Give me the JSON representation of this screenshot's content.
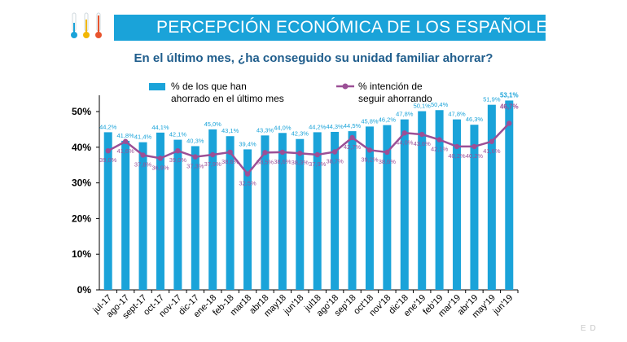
{
  "header": {
    "title": "PERCEPCIÓN ECONÓMICA DE LOS ESPAÑOLES",
    "subtitle": "En el último mes, ¿ha conseguido su unidad familiar ahorrar?",
    "thermometer_colors": [
      "#1aa3d9",
      "#f2b705",
      "#e8542e"
    ]
  },
  "legend": {
    "bar_line1": "% de los que han",
    "bar_line2": "ahorrado en el último mes",
    "line_line1": "% intención de",
    "line_line2": "seguir ahorrando"
  },
  "colors": {
    "bars": "#1aa3d9",
    "line": "#9b4f96",
    "bar_label": "#1aa3d9",
    "line_label": "#9b4f96"
  },
  "watermark": "E D",
  "chart_data": {
    "type": "bar",
    "categories": [
      "jul-17",
      "ago-17",
      "sept-17",
      "oct-17",
      "nov-17",
      "dic-17",
      "ene-18",
      "feb-18",
      "mar18",
      "abr18",
      "may18",
      "jun'18",
      "jul18",
      "ago'18",
      "sep'18",
      "oct'18",
      "nov'18",
      "dic'18",
      "ene'19",
      "feb'19",
      "mar'19",
      "abr'19",
      "may'19",
      "jun'19"
    ],
    "series": [
      {
        "name": "% de los que han ahorrado en el último mes",
        "type": "bar",
        "values": [
          44.2,
          41.8,
          41.4,
          44.1,
          42.1,
          40.3,
          45.0,
          43.1,
          39.4,
          43.3,
          44.0,
          42.3,
          44.2,
          44.3,
          44.5,
          45.8,
          46.2,
          47.8,
          50.1,
          50.4,
          47.8,
          46.3,
          51.9,
          53.1
        ],
        "labels": [
          "44,2%",
          "41,8%",
          "41,4%",
          "44,1%",
          "42,1%",
          "40,3%",
          "45,0%",
          "43,1%",
          "39,4%",
          "43,3%",
          "44,0%",
          "42,3%",
          "44,2%",
          "44,3%",
          "44,5%",
          "45,8%",
          "46,2%",
          "47,8%",
          "50,1%",
          "50,4%",
          "47,8%",
          "46,3%",
          "51,9%",
          "53,1%"
        ]
      },
      {
        "name": "% intención de seguir ahorrando",
        "type": "line",
        "values": [
          39.0,
          41.6,
          37.8,
          36.9,
          39.0,
          37.3,
          37.9,
          38.6,
          32.5,
          38.5,
          38.6,
          38.3,
          37.9,
          38.7,
          42.7,
          39.2,
          38.6,
          44.0,
          43.6,
          42.1,
          40.2,
          40.2,
          41.6,
          46.7
        ],
        "labels": [
          "39,0%",
          "41,6%",
          "37,8%",
          "36,9%",
          "39,0%",
          "37,3%",
          "37,9%",
          "38,6%",
          "32,5%",
          "38,5%",
          "38,6%",
          "38,3%",
          "37,9%",
          "38,7%",
          "42,7%",
          "39,2%",
          "38,6%",
          "44,0%",
          "43,6%",
          "42,1%",
          "40,2%",
          "40,2%",
          "41,6%",
          "46,7%"
        ]
      }
    ],
    "y_ticks": [
      "0%",
      "10%",
      "20%",
      "30%",
      "40%",
      "50%"
    ],
    "ylim": [
      0,
      55
    ],
    "xlabel": "",
    "ylabel": "",
    "grid": false,
    "legend": "top"
  }
}
